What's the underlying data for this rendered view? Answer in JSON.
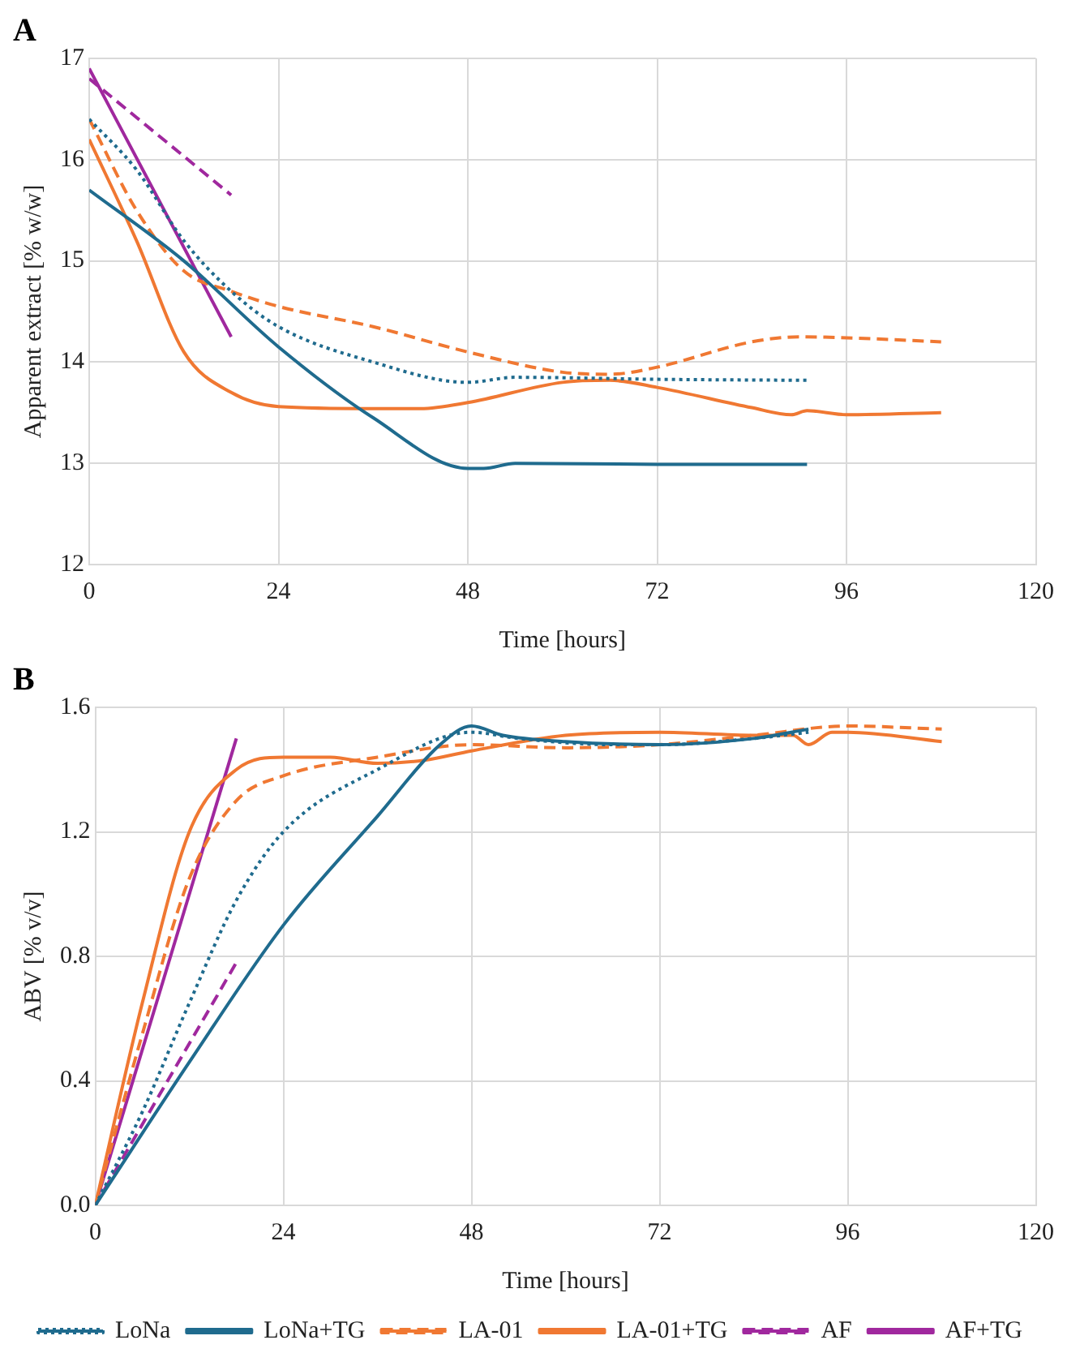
{
  "chart_data": [
    {
      "type": "line",
      "title": "A",
      "xlabel": "Time [hours]",
      "ylabel": "Apparent extract [% w/w]",
      "xlim": [
        0,
        120
      ],
      "xticks": [
        0,
        24,
        48,
        72,
        96,
        120
      ],
      "ylim": [
        12,
        17
      ],
      "yticks": [
        12,
        13,
        14,
        15,
        16,
        17
      ],
      "grid": true,
      "legend": false,
      "marker": "none",
      "series": [
        {
          "color": "#1f6b8e",
          "line_style": "dotted",
          "x": [
            0,
            6,
            12,
            18,
            24,
            36,
            48,
            54,
            72,
            91
          ],
          "values": [
            16.4,
            15.9,
            15.2,
            14.7,
            14.35,
            14.0,
            13.8,
            13.85,
            13.83,
            13.82
          ]
        },
        {
          "color": "#1f6b8e",
          "line_style": "solid",
          "x": [
            0,
            12,
            24,
            36,
            48,
            50,
            54,
            72,
            91
          ],
          "values": [
            15.7,
            15.0,
            14.15,
            13.45,
            12.95,
            12.95,
            13.0,
            12.99,
            12.99
          ]
        },
        {
          "color": "#f07832",
          "line_style": "dashed",
          "x": [
            0,
            6,
            12,
            18,
            24,
            36,
            48,
            60,
            66,
            72,
            84,
            90,
            96,
            108
          ],
          "values": [
            16.4,
            15.5,
            14.9,
            14.7,
            14.55,
            14.35,
            14.1,
            13.9,
            13.88,
            13.95,
            14.2,
            14.25,
            14.24,
            14.2
          ]
        },
        {
          "color": "#f07832",
          "line_style": "solid",
          "x": [
            0,
            6,
            12,
            18,
            24,
            36,
            42,
            48,
            60,
            66,
            72,
            84,
            89,
            91,
            96,
            108
          ],
          "values": [
            16.2,
            15.2,
            14.1,
            13.7,
            13.56,
            13.54,
            13.54,
            13.6,
            13.8,
            13.82,
            13.75,
            13.55,
            13.48,
            13.52,
            13.48,
            13.5
          ]
        },
        {
          "color": "#a0289e",
          "line_style": "dashed",
          "x": [
            0,
            18
          ],
          "values": [
            16.8,
            15.65
          ]
        },
        {
          "color": "#a0289e",
          "line_style": "solid",
          "x": [
            0,
            18
          ],
          "values": [
            16.9,
            14.25
          ]
        }
      ]
    },
    {
      "type": "line",
      "title": "B",
      "xlabel": "Time [hours]",
      "ylabel": "ABV [% v/v]",
      "xlim": [
        0,
        120
      ],
      "xticks": [
        0,
        24,
        48,
        72,
        96,
        120
      ],
      "ylim": [
        0,
        1.6
      ],
      "yticks": [
        {
          "value": 0,
          "label": "0.0"
        },
        0.4,
        0.8,
        1.2,
        1.6
      ],
      "grid": true,
      "legend": "bottom",
      "marker": "none",
      "series": [
        {
          "name": "LoNa",
          "color": "#1f6b8e",
          "line_style": "dotted",
          "x": [
            0,
            6,
            12,
            18,
            24,
            36,
            48,
            54,
            66,
            72,
            84,
            91
          ],
          "values": [
            0,
            0.3,
            0.65,
            0.98,
            1.2,
            1.4,
            1.52,
            1.5,
            1.48,
            1.48,
            1.5,
            1.52
          ]
        },
        {
          "name": "LoNa+TG",
          "color": "#1f6b8e",
          "line_style": "solid",
          "x": [
            0,
            12,
            24,
            36,
            44,
            48,
            52,
            60,
            72,
            84,
            91
          ],
          "values": [
            0,
            0.46,
            0.9,
            1.25,
            1.48,
            1.54,
            1.51,
            1.49,
            1.48,
            1.5,
            1.53
          ]
        },
        {
          "name": "LA-01",
          "color": "#f07832",
          "line_style": "dashed",
          "x": [
            0,
            6,
            12,
            18,
            24,
            36,
            48,
            60,
            72,
            84,
            96,
            108
          ],
          "values": [
            0,
            0.55,
            1.05,
            1.3,
            1.38,
            1.44,
            1.48,
            1.47,
            1.48,
            1.51,
            1.54,
            1.53
          ]
        },
        {
          "name": "LA-01+TG",
          "color": "#f07832",
          "line_style": "solid",
          "x": [
            0,
            6,
            12,
            18,
            24,
            30,
            36,
            42,
            48,
            60,
            72,
            84,
            89,
            91,
            94,
            96,
            108
          ],
          "values": [
            0,
            0.65,
            1.2,
            1.4,
            1.44,
            1.44,
            1.42,
            1.43,
            1.46,
            1.51,
            1.52,
            1.51,
            1.51,
            1.48,
            1.52,
            1.52,
            1.49
          ]
        },
        {
          "name": "AF",
          "color": "#a0289e",
          "line_style": "dashed",
          "x": [
            0,
            18
          ],
          "values": [
            0,
            0.78
          ]
        },
        {
          "name": "AF+TG",
          "color": "#a0289e",
          "line_style": "solid",
          "x": [
            0,
            18
          ],
          "values": [
            0,
            1.5
          ]
        }
      ]
    }
  ]
}
